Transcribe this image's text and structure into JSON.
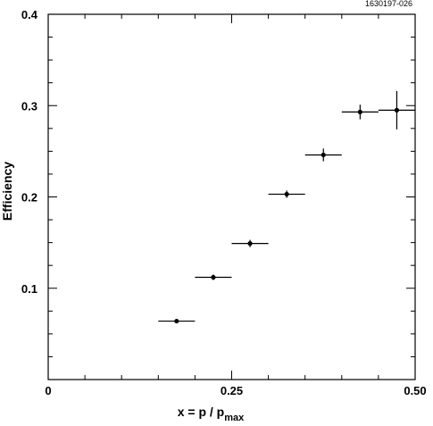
{
  "chart_data": {
    "type": "scatter",
    "title": "",
    "xlabel_main": "x = p / p",
    "xlabel_sub": "max",
    "ylabel": "Efficiency",
    "annotation": "1630197-026",
    "xlim": [
      0,
      0.5
    ],
    "ylim": [
      0,
      0.4
    ],
    "x_tick_labels": [
      {
        "value": 0,
        "label": "0"
      },
      {
        "value": 0.25,
        "label": "0.25"
      },
      {
        "value": 0.5,
        "label": "0.50"
      }
    ],
    "y_tick_labels": [
      {
        "value": 0.1,
        "label": "0.1"
      },
      {
        "value": 0.2,
        "label": "0.2"
      },
      {
        "value": 0.3,
        "label": "0.3"
      },
      {
        "value": 0.4,
        "label": "0.4"
      }
    ],
    "grid": false,
    "series": [
      {
        "points": [
          {
            "x": 0.175,
            "y": 0.064,
            "xerr": 0.025,
            "yerr": 0.002
          },
          {
            "x": 0.225,
            "y": 0.112,
            "xerr": 0.025,
            "yerr": 0.003
          },
          {
            "x": 0.275,
            "y": 0.149,
            "xerr": 0.025,
            "yerr": 0.004
          },
          {
            "x": 0.325,
            "y": 0.203,
            "xerr": 0.025,
            "yerr": 0.004
          },
          {
            "x": 0.375,
            "y": 0.246,
            "xerr": 0.025,
            "yerr": 0.007
          },
          {
            "x": 0.425,
            "y": 0.293,
            "xerr": 0.025,
            "yerr": 0.008
          },
          {
            "x": 0.475,
            "y": 0.295,
            "xerr": 0.025,
            "yerr": 0.021
          }
        ]
      }
    ]
  }
}
